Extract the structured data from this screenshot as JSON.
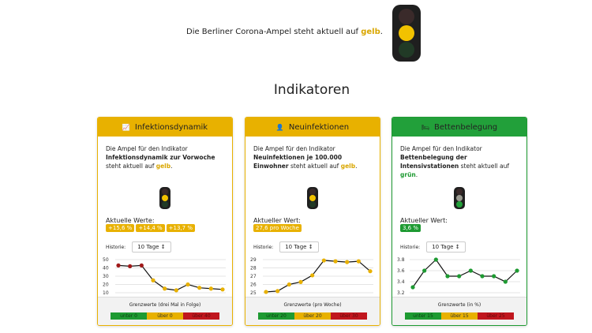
{
  "banner": {
    "text_prefix": "Die Berliner Corona-Ampel steht aktuell auf ",
    "status": "gelb",
    "text_suffix": "."
  },
  "title": "Indikatoren",
  "colors": {
    "yellow": "#e8b100",
    "green": "#1e9a32",
    "red": "#c0161e"
  },
  "cards": [
    {
      "title": "Infektionsdynamik",
      "icon": "chart-line-icon",
      "desc_prefix": "Die Ampel für den Indikator ",
      "desc_bold": "Infektionsdynamik zur Vorwoche",
      "desc_mid": " steht aktuell auf ",
      "status": "gelb",
      "desc_suffix": ".",
      "values_label": "Aktuelle Werte:",
      "values": [
        "+15,6 %",
        "+14,4 %",
        "+13,7 %"
      ],
      "history_label": "Historie:",
      "history_select": "10 Tage",
      "limits_title": "Grenzwerte (drei Mal in Folge)",
      "limits": [
        "unter 0",
        "über 0",
        "über 40"
      ]
    },
    {
      "title": "Neuinfektionen",
      "icon": "user-plus-icon",
      "desc_prefix": "Die Ampel für den Indikator ",
      "desc_bold": "Neuinfektionen je 100.000 Einwohner",
      "desc_mid": " steht aktuell auf ",
      "status": "gelb",
      "desc_suffix": ".",
      "values_label": "Aktueller Wert:",
      "values": [
        "27,6 pro Woche"
      ],
      "history_label": "Historie:",
      "history_select": "10 Tage",
      "limits_title": "Grenzwerte (pro Woche)",
      "limits": [
        "unter 20",
        "über 20",
        "über 30"
      ]
    },
    {
      "title": "Bettenbelegung",
      "icon": "bed-icon",
      "desc_prefix": "Die Ampel für den Indikator ",
      "desc_bold": "Bettenbelegung der Intensivstationen",
      "desc_mid": " steht aktuell auf ",
      "status": "grün",
      "desc_suffix": ".",
      "values_label": "Aktueller Wert:",
      "values": [
        "3,6 %"
      ],
      "history_label": "Historie:",
      "history_select": "10 Tage",
      "limits_title": "Grenzwerte (in %)",
      "limits": [
        "unter 15",
        "über 15",
        "über 25"
      ]
    }
  ],
  "chart_data": [
    {
      "type": "line",
      "yticks": [
        "10",
        "20",
        "30",
        "40",
        "50"
      ],
      "ylim": [
        10,
        50
      ],
      "values": [
        43,
        42,
        43,
        25,
        15,
        13,
        20,
        16,
        15,
        14
      ],
      "point_colors": [
        "#a01a1a",
        "#a01a1a",
        "#a01a1a",
        "#e8b100",
        "#e8b100",
        "#e8b100",
        "#e8b100",
        "#e8b100",
        "#e8b100",
        "#e8b100"
      ]
    },
    {
      "type": "line",
      "yticks": [
        "25",
        "26",
        "27",
        "28",
        "29"
      ],
      "ylim": [
        25,
        29
      ],
      "values": [
        25.1,
        25.2,
        26.0,
        26.3,
        27.1,
        28.9,
        28.8,
        28.7,
        28.8,
        27.6
      ],
      "point_color": "#e8b100"
    },
    {
      "type": "line",
      "yticks": [
        "3.2",
        "3.4",
        "3.6",
        "3.8"
      ],
      "ylim": [
        3.2,
        3.8
      ],
      "values": [
        3.3,
        3.6,
        3.8,
        3.5,
        3.5,
        3.6,
        3.5,
        3.5,
        3.4,
        3.6
      ],
      "point_color": "#1e9a32"
    }
  ]
}
